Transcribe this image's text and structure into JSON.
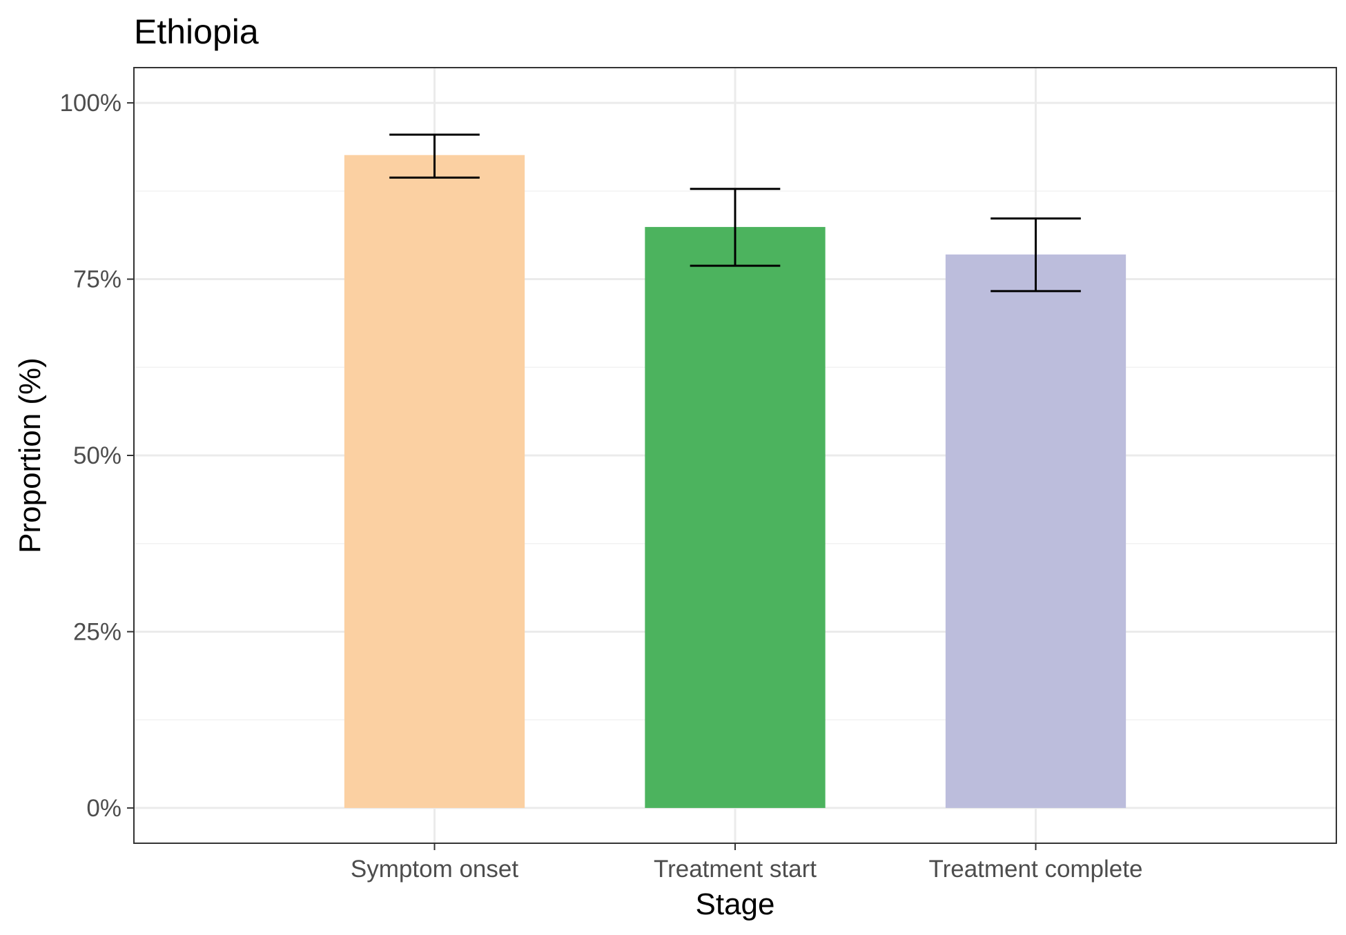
{
  "chart_data": {
    "type": "bar",
    "title": "Ethiopia",
    "xlabel": "Stage",
    "ylabel": "Proportion (%)",
    "categories": [
      "Symptom onset",
      "Treatment start",
      "Treatment complete"
    ],
    "values": [
      92.6,
      82.4,
      78.5
    ],
    "error_low": [
      89.4,
      76.9,
      73.3
    ],
    "error_high": [
      95.5,
      87.8,
      83.6
    ],
    "colors": [
      "#FBD0A2",
      "#4CB35E",
      "#BCBDDC"
    ],
    "ylim": [
      -5,
      105
    ],
    "yticks": [
      0,
      25,
      50,
      75,
      100
    ],
    "ytick_labels": [
      "0%",
      "25%",
      "50%",
      "75%",
      "100%"
    ],
    "grid": true,
    "legend": "none"
  }
}
